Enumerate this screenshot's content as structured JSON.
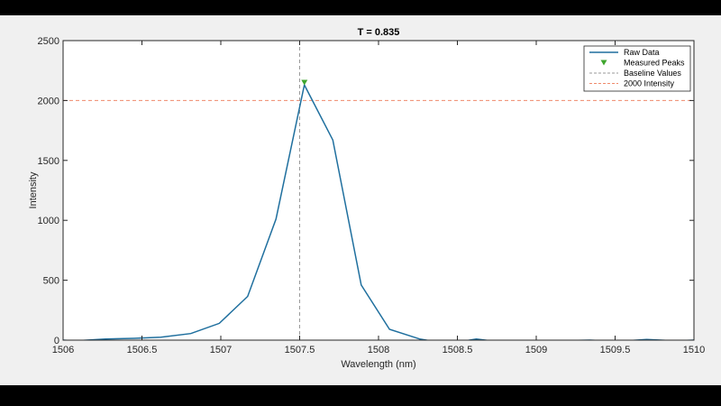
{
  "colors": {
    "raw_line": "#1f6f9e",
    "peak_marker": "#3fa62e",
    "baseline_line": "#9a9a9a",
    "intensity_line": "#ef8a6b",
    "axes_background": "#ffffff",
    "figure_background": "#f0f0f0"
  },
  "chart_data": {
    "type": "line",
    "title": "T = 0.835",
    "xlabel": "Wavelength (nm)",
    "ylabel": "Intensity",
    "xlim": [
      1506,
      1510
    ],
    "ylim": [
      0,
      2500
    ],
    "xticks": [
      1506,
      1506.5,
      1507,
      1507.5,
      1508,
      1508.5,
      1509,
      1509.5,
      1510
    ],
    "yticks": [
      0,
      500,
      1000,
      1500,
      2000,
      2500
    ],
    "xtick_labels": [
      "1506",
      "1506.5",
      "1507",
      "1507.5",
      "1508",
      "1508.5",
      "1509",
      "1509.5",
      "1510"
    ],
    "ytick_labels": [
      "0",
      "500",
      "1000",
      "1500",
      "2000",
      "2500"
    ],
    "grid": false,
    "legend_position": "top-right",
    "series": [
      {
        "name": "Raw Data",
        "style": "solid-line",
        "x": [
          1506.0,
          1506.08,
          1506.27,
          1506.45,
          1506.62,
          1506.81,
          1506.99,
          1507.17,
          1507.35,
          1507.53,
          1507.71,
          1507.89,
          1508.07,
          1508.26,
          1508.44,
          1508.62,
          1508.8,
          1508.98,
          1509.16,
          1509.34,
          1509.52,
          1509.7,
          1509.88,
          1510.0
        ],
        "y": [
          0,
          -5,
          10,
          15,
          25,
          55,
          140,
          365,
          1010,
          2130,
          1670,
          460,
          90,
          10,
          -30,
          10,
          -20,
          -5,
          -5,
          0,
          -10,
          5,
          -5,
          0
        ]
      },
      {
        "name": "Measured Peaks",
        "style": "triangle-marker",
        "x": [
          1507.53
        ],
        "y": [
          2150
        ]
      },
      {
        "name": "Baseline Values",
        "style": "dashed-vertical",
        "x": [
          1507.5
        ]
      },
      {
        "name": "2000 Intensity",
        "style": "dashed-horizontal",
        "y": [
          2000
        ]
      }
    ]
  }
}
